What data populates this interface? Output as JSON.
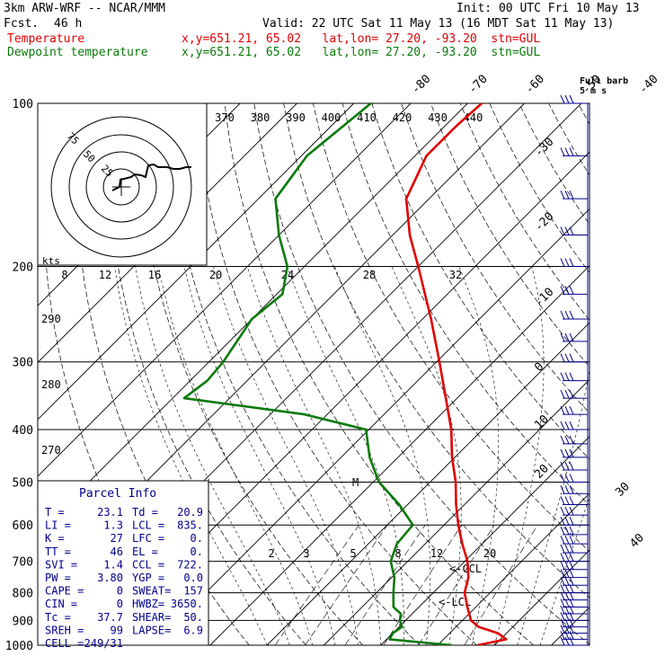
{
  "header": {
    "model": "3km ARW-WRF -- NCAR/MMM",
    "init": "Init: 00 UTC Fri 10 May 13",
    "fcst_label": "Fcst.",
    "fcst_value": "46 h",
    "valid": "Valid: 22 UTC Sat 11 May 13 (16 MDT Sat 11 May 13)",
    "temp_label": "Temperature",
    "temp_info": "x,y=651.21, 65.02   lat,lon= 27.20, -93.20  stn=GUL",
    "dew_label": "Dewpoint temperature",
    "dew_info": "x,y=651.21, 65.02   lat,lon= 27.20, -93.20  stn=GUL"
  },
  "colors": {
    "temperature": "#e00000",
    "dewpoint": "#0a7a0a",
    "wind": "#00008b",
    "parcel_text": "#00008b",
    "grid": "#000000"
  },
  "chart_data": {
    "type": "line",
    "ylabel": "",
    "xlabel": "",
    "y_scale": "log",
    "ylim": [
      1000,
      100
    ],
    "pressure_ticks": [
      "100",
      "200",
      "300",
      "400",
      "500",
      "600",
      "700",
      "800",
      "900",
      "1000"
    ],
    "isotherm_labels_top": [
      "-80",
      "-70",
      "-60",
      "-50",
      "-40"
    ],
    "isotherm_labels_right": [
      "-30",
      "-20",
      "-10",
      "0",
      "10",
      "20",
      "30",
      "40"
    ],
    "theta_labels": [
      "370",
      "380",
      "390",
      "400",
      "410",
      "420",
      "430",
      "440"
    ],
    "theta_labels_left": [
      "290",
      "280",
      "270"
    ],
    "mixing_ratio_labels": [
      "2",
      "3",
      "5",
      "8",
      "12",
      "20"
    ],
    "hodo_speed_labels": [
      "8",
      "12",
      "16",
      "20",
      "24",
      "28",
      "32"
    ],
    "hodo_units": "kts",
    "hodo_ring_labels": [
      "75",
      "50",
      "25"
    ],
    "series": [
      {
        "name": "Temperature",
        "points": [
          [
            1000,
            27.0
          ],
          [
            975,
            31.0
          ],
          [
            950,
            28.5
          ],
          [
            925,
            24.0
          ],
          [
            900,
            21.5
          ],
          [
            850,
            18.5
          ],
          [
            800,
            15.5
          ],
          [
            750,
            13.5
          ],
          [
            700,
            10.5
          ],
          [
            650,
            6.5
          ],
          [
            600,
            2.5
          ],
          [
            550,
            -1.5
          ],
          [
            500,
            -5.5
          ],
          [
            450,
            -10.5
          ],
          [
            400,
            -15.5
          ],
          [
            350,
            -22.0
          ],
          [
            300,
            -29.5
          ],
          [
            250,
            -38.5
          ],
          [
            200,
            -50.0
          ],
          [
            175,
            -57.0
          ],
          [
            150,
            -64.0
          ],
          [
            125,
            -68.0
          ],
          [
            110,
            -68.0
          ],
          [
            100,
            -67.5
          ]
        ]
      },
      {
        "name": "Dewpoint temperature",
        "points": [
          [
            1000,
            22.5
          ],
          [
            975,
            10.5
          ],
          [
            950,
            10.0
          ],
          [
            925,
            10.5
          ],
          [
            900,
            9.0
          ],
          [
            875,
            8.0
          ],
          [
            850,
            5.5
          ],
          [
            800,
            3.0
          ],
          [
            750,
            0.5
          ],
          [
            700,
            -3.0
          ],
          [
            650,
            -5.0
          ],
          [
            600,
            -5.5
          ],
          [
            550,
            -11.5
          ],
          [
            500,
            -19.0
          ],
          [
            450,
            -25.0
          ],
          [
            400,
            -30.5
          ],
          [
            375,
            -44.0
          ],
          [
            350,
            -68.0
          ],
          [
            325,
            -67.0
          ],
          [
            300,
            -67.5
          ],
          [
            250,
            -70.0
          ],
          [
            225,
            -69.0
          ],
          [
            200,
            -73.0
          ],
          [
            175,
            -80.0
          ],
          [
            150,
            -87.0
          ],
          [
            125,
            -89.0
          ],
          [
            100,
            -87.0
          ]
        ]
      }
    ],
    "annotations": [
      "<-CCL",
      "<-LCL",
      "M"
    ],
    "wind_barb_key_title": "Full barb",
    "wind_barb_key_units": "5 m s",
    "wind_barbs": [
      100,
      125,
      150,
      175,
      200,
      225,
      250,
      275,
      300,
      325,
      350,
      375,
      400,
      425,
      450,
      475,
      500,
      525,
      550,
      575,
      600,
      625,
      650,
      675,
      700,
      725,
      750,
      775,
      800,
      825,
      850,
      875,
      900,
      925,
      950,
      975,
      1000
    ]
  },
  "parcel": {
    "title": "Parcel Info",
    "rows": [
      {
        "k1": "T   =",
        "v1": "23.1",
        "k2": "Td =",
        "v2": "20.9"
      },
      {
        "k1": "LI  =",
        "v1": "1.3",
        "k2": "LCL =",
        "v2": "835."
      },
      {
        "k1": "K   =",
        "v1": "27",
        "k2": "LFC =",
        "v2": "0."
      },
      {
        "k1": "TT  =",
        "v1": "46",
        "k2": "EL  =",
        "v2": "0."
      },
      {
        "k1": "SVI =",
        "v1": "1.4",
        "k2": "CCL =",
        "v2": "722."
      },
      {
        "k1": "PW  =",
        "v1": "3.80",
        "k2": "YGP =",
        "v2": "0.0"
      },
      {
        "k1": "CAPE =",
        "v1": "0",
        "k2": "SWEAT=",
        "v2": "157"
      },
      {
        "k1": "CIN  =",
        "v1": "0",
        "k2": "HWBZ=",
        "v2": "3650."
      },
      {
        "k1": "Tc  =",
        "v1": "37.7",
        "k2": "SHEAR=",
        "v2": "50."
      },
      {
        "k1": "SREH =",
        "v1": "99",
        "k2": "LAPSE=",
        "v2": "6.9"
      },
      {
        "k1": "CELL =",
        "v1": "249/31",
        "k2": "",
        "v2": ""
      }
    ]
  }
}
